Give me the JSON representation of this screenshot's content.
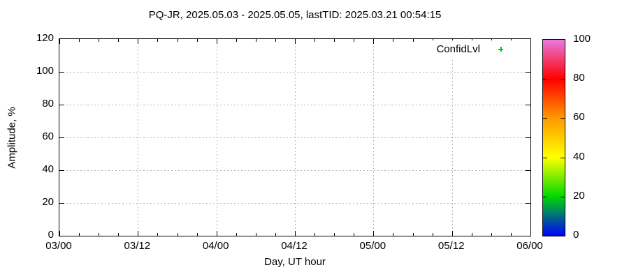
{
  "colors": {
    "background": "#ffffff",
    "axis": "#000000",
    "grid": "#b4b4b4",
    "marker_green": "#00cc00"
  },
  "legend": {
    "label": "ConfidLvl",
    "marker": "plus-icon"
  },
  "chart_data": {
    "type": "scatter",
    "title": "PQ-JR, 2025.05.03 - 2025.05.05, lastTID: 2025.03.21 00:54:15",
    "xlabel": "Day, UT hour",
    "ylabel": "Amplitude, %",
    "x_tick_labels": [
      "03/00",
      "03/12",
      "04/00",
      "04/12",
      "05/00",
      "05/12",
      "06/00"
    ],
    "x_minor_divisions": 4,
    "y_ticks": [
      0,
      20,
      40,
      60,
      80,
      100,
      120
    ],
    "ylim": [
      0,
      120
    ],
    "grid": true,
    "grid_style": "dashed",
    "legend_position": "top-right-inside",
    "series": [
      {
        "name": "ConfidLvl",
        "marker": "plus",
        "color": "#00cc00",
        "points": []
      }
    ],
    "colorbar": {
      "min": 0,
      "max": 100,
      "ticks": [
        0,
        20,
        40,
        60,
        80,
        100
      ],
      "gradient_stops_bottom_to_top": [
        "#0000ff",
        "#00d800",
        "#ffff00",
        "#ff9900",
        "#ff0000",
        "#e878e0"
      ]
    }
  }
}
